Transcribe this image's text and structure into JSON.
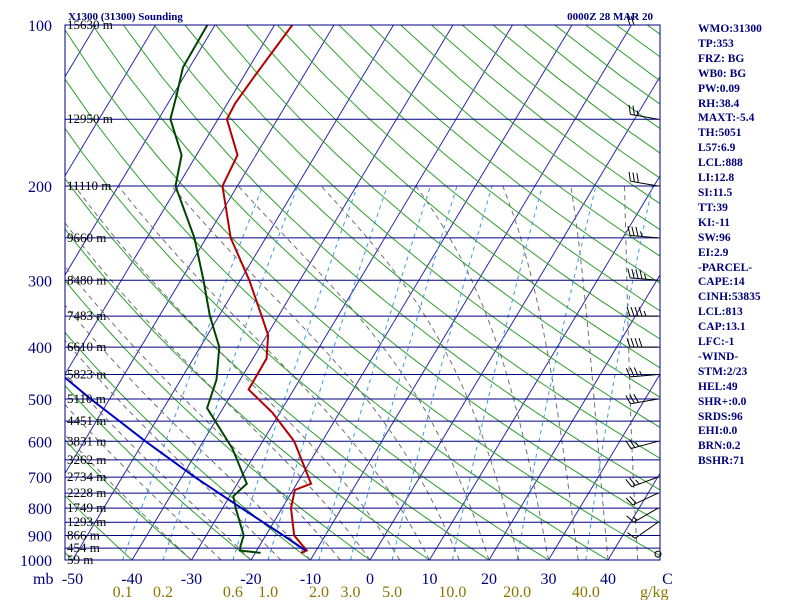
{
  "header": {
    "station": "X1300 (31300) Sounding",
    "time": "0000Z 28 MAR 20"
  },
  "indices": [
    "WMO:31300",
    "TP:353",
    "FRZ: BG",
    "WB0: BG",
    "PW:0.09",
    "RH:38.4",
    "MAXT:-5.4",
    "TH:5051",
    "L57:6.9",
    "LCL:888",
    "LI:12.8",
    "SI:11.5",
    "TT:39",
    "KI:-11",
    "SW:96",
    "EI:2.9",
    "-PARCEL-",
    "CAPE:14",
    "CINH:53835",
    "LCL:813",
    "CAP:13.1",
    "LFC:-1",
    "-WIND-",
    "STM:2/23",
    "HEL:49",
    "SHR+:0.0",
    "SRDS:96",
    "EHI:0.0",
    "BRN:0.2",
    "BSHR:71"
  ],
  "colors": {
    "isobar": "#000080",
    "isotherm": "#2a2aa8",
    "dry_adiabat": "#2e9e2e",
    "moist_adiabat": "#707070",
    "mixing_ratio": "#3a9be0",
    "temperature": "#b40000",
    "dewpoint": "#004400",
    "parcel": "#0000c0",
    "wind": "#000000",
    "background": "#ffffff"
  },
  "chart_data": {
    "type": "line",
    "title": "X1300 (31300) Sounding",
    "subtitle": "0000Z 28 MAR 20",
    "xlabel": "",
    "ylabel": "mb",
    "log_pressure_axis": true,
    "skewed_temperature_axis": true,
    "pressure_range": [
      1000,
      100
    ],
    "pressure_ticks": [
      "100",
      "200",
      "300",
      "400",
      "500",
      "600",
      "700",
      "800",
      "900",
      "1000"
    ],
    "height_labels": [
      {
        "p": 100,
        "label": "15630 m"
      },
      {
        "p": 150,
        "label": "12950 m"
      },
      {
        "p": 200,
        "label": "11110 m"
      },
      {
        "p": 250,
        "label": "9660 m"
      },
      {
        "p": 300,
        "label": "8480 m"
      },
      {
        "p": 350,
        "label": "7483 m"
      },
      {
        "p": 400,
        "label": "6610 m"
      },
      {
        "p": 450,
        "label": "5823 m"
      },
      {
        "p": 500,
        "label": "5110 m"
      },
      {
        "p": 550,
        "label": "4451 m"
      },
      {
        "p": 600,
        "label": "3831 m"
      },
      {
        "p": 650,
        "label": "3262 m"
      },
      {
        "p": 700,
        "label": "2734 m"
      },
      {
        "p": 750,
        "label": "2228 m"
      },
      {
        "p": 800,
        "label": "1749 m"
      },
      {
        "p": 850,
        "label": "1293 m"
      },
      {
        "p": 900,
        "label": "866 m"
      },
      {
        "p": 950,
        "label": "454 m"
      },
      {
        "p": 1000,
        "label": "59 m"
      }
    ],
    "temperature_ticks": [
      {
        "value": -50,
        "label": "-50"
      },
      {
        "value": -40,
        "label": "-40"
      },
      {
        "value": -30,
        "label": "-30"
      },
      {
        "value": -20,
        "label": "-20"
      },
      {
        "value": -10,
        "label": "-10"
      },
      {
        "value": 0,
        "label": "0"
      },
      {
        "value": 10,
        "label": "10"
      },
      {
        "value": 20,
        "label": "20"
      },
      {
        "value": 30,
        "label": "30"
      },
      {
        "value": 40,
        "label": "40"
      },
      {
        "value": 50,
        "label": "C"
      }
    ],
    "mixing_ratio_ticks": [
      {
        "value": 0.1,
        "label": "0.1"
      },
      {
        "value": 0.2,
        "label": "0.2"
      },
      {
        "value": 0.6,
        "label": "0.6"
      },
      {
        "value": 1.0,
        "label": "1.0"
      },
      {
        "value": 2.0,
        "label": "2.0"
      },
      {
        "value": 3.0,
        "label": "3.0"
      },
      {
        "value": 5.0,
        "label": "5.0"
      },
      {
        "value": 10.0,
        "label": "10.0"
      },
      {
        "value": 20.0,
        "label": "20.0"
      },
      {
        "value": 40.0,
        "label": "40.0"
      }
    ],
    "mixing_ratio_unit": "g/kg",
    "series": [
      {
        "key": "temperature",
        "points": [
          {
            "p": 970,
            "t": -12.3
          },
          {
            "p": 960,
            "t": -11.6
          },
          {
            "p": 900,
            "t": -15.2
          },
          {
            "p": 800,
            "t": -18.5
          },
          {
            "p": 740,
            "t": -19.7
          },
          {
            "p": 720,
            "t": -17.6
          },
          {
            "p": 600,
            "t": -24.7
          },
          {
            "p": 530,
            "t": -31.3
          },
          {
            "p": 480,
            "t": -37.6
          },
          {
            "p": 420,
            "t": -37.7
          },
          {
            "p": 380,
            "t": -39.8
          },
          {
            "p": 350,
            "t": -42.8
          },
          {
            "p": 300,
            "t": -48.5
          },
          {
            "p": 250,
            "t": -55.9
          },
          {
            "p": 200,
            "t": -62.5
          },
          {
            "p": 175,
            "t": -63.1
          },
          {
            "p": 150,
            "t": -68.5
          },
          {
            "p": 140,
            "t": -68.7
          },
          {
            "p": 125,
            "t": -68.2
          },
          {
            "p": 100,
            "t": -67.0
          }
        ]
      },
      {
        "key": "dewpoint",
        "points": [
          {
            "p": 970,
            "t": -19.1
          },
          {
            "p": 960,
            "t": -22.8
          },
          {
            "p": 940,
            "t": -23.2
          },
          {
            "p": 900,
            "t": -23.7
          },
          {
            "p": 800,
            "t": -27.8
          },
          {
            "p": 760,
            "t": -29.4
          },
          {
            "p": 720,
            "t": -28.4
          },
          {
            "p": 620,
            "t": -34.3
          },
          {
            "p": 520,
            "t": -42.7
          },
          {
            "p": 460,
            "t": -44.0
          },
          {
            "p": 400,
            "t": -46.8
          },
          {
            "p": 350,
            "t": -51.5
          },
          {
            "p": 300,
            "t": -56.2
          },
          {
            "p": 250,
            "t": -62.0
          },
          {
            "p": 200,
            "t": -70.4
          },
          {
            "p": 175,
            "t": -72.5
          },
          {
            "p": 150,
            "t": -78.0
          },
          {
            "p": 135,
            "t": -79.4
          },
          {
            "p": 120,
            "t": -81.1
          },
          {
            "p": 100,
            "t": -81.3
          }
        ]
      },
      {
        "key": "parcel",
        "points": [
          {
            "p": 960,
            "t": -11.8
          },
          {
            "p": 900,
            "t": -17.0
          },
          {
            "p": 800,
            "t": -26.8
          },
          {
            "p": 700,
            "t": -37.8
          },
          {
            "p": 600,
            "t": -49.7
          },
          {
            "p": 500,
            "t": -63.2
          },
          {
            "p": 400,
            "t": -78.9
          },
          {
            "p": 300,
            "t": -97.4
          },
          {
            "p": 200,
            "t": -120.5
          },
          {
            "p": 150,
            "t": -135.0
          },
          {
            "p": 100,
            "t": -152.6
          }
        ]
      }
    ],
    "wind_barbs": [
      {
        "p": 975,
        "dir_deg": 230,
        "speed_kt": 0
      },
      {
        "p": 850,
        "dir_deg": 235,
        "speed_kt": 10
      },
      {
        "p": 800,
        "dir_deg": 240,
        "speed_kt": 15
      },
      {
        "p": 750,
        "dir_deg": 245,
        "speed_kt": 20
      },
      {
        "p": 700,
        "dir_deg": 250,
        "speed_kt": 25
      },
      {
        "p": 600,
        "dir_deg": 255,
        "speed_kt": 25
      },
      {
        "p": 500,
        "dir_deg": 260,
        "speed_kt": 30
      },
      {
        "p": 450,
        "dir_deg": 265,
        "speed_kt": 35
      },
      {
        "p": 400,
        "dir_deg": 270,
        "speed_kt": 40
      },
      {
        "p": 350,
        "dir_deg": 270,
        "speed_kt": 45
      },
      {
        "p": 300,
        "dir_deg": 275,
        "speed_kt": 45
      },
      {
        "p": 250,
        "dir_deg": 275,
        "speed_kt": 35
      },
      {
        "p": 200,
        "dir_deg": 280,
        "speed_kt": 30
      },
      {
        "p": 150,
        "dir_deg": 280,
        "speed_kt": 25
      },
      {
        "p": 100,
        "dir_deg": 270,
        "speed_kt": 20
      }
    ],
    "grid": true,
    "legend": "none"
  }
}
